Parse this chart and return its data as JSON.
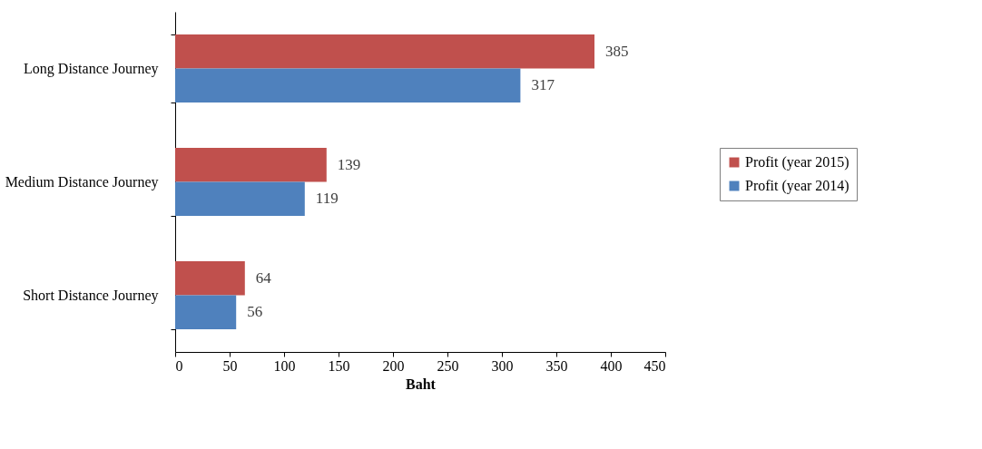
{
  "chart_data": {
    "type": "bar",
    "orientation": "horizontal",
    "categories": [
      "Long Distance Journey",
      "Medium Distance Journey",
      "Short Distance Journey"
    ],
    "series": [
      {
        "name": "Profit (year 2015)",
        "color": "#c0504d",
        "values": [
          385,
          139,
          64
        ]
      },
      {
        "name": "Profit (year 2014)",
        "color": "#4f81bd",
        "values": [
          317,
          119,
          56
        ]
      }
    ],
    "xlabel": "Baht",
    "xlim": [
      0,
      450
    ],
    "xticks": [
      0,
      50,
      100,
      150,
      200,
      250,
      300,
      350,
      400,
      450
    ],
    "data_labels": true,
    "legend": "right",
    "grid": false
  }
}
